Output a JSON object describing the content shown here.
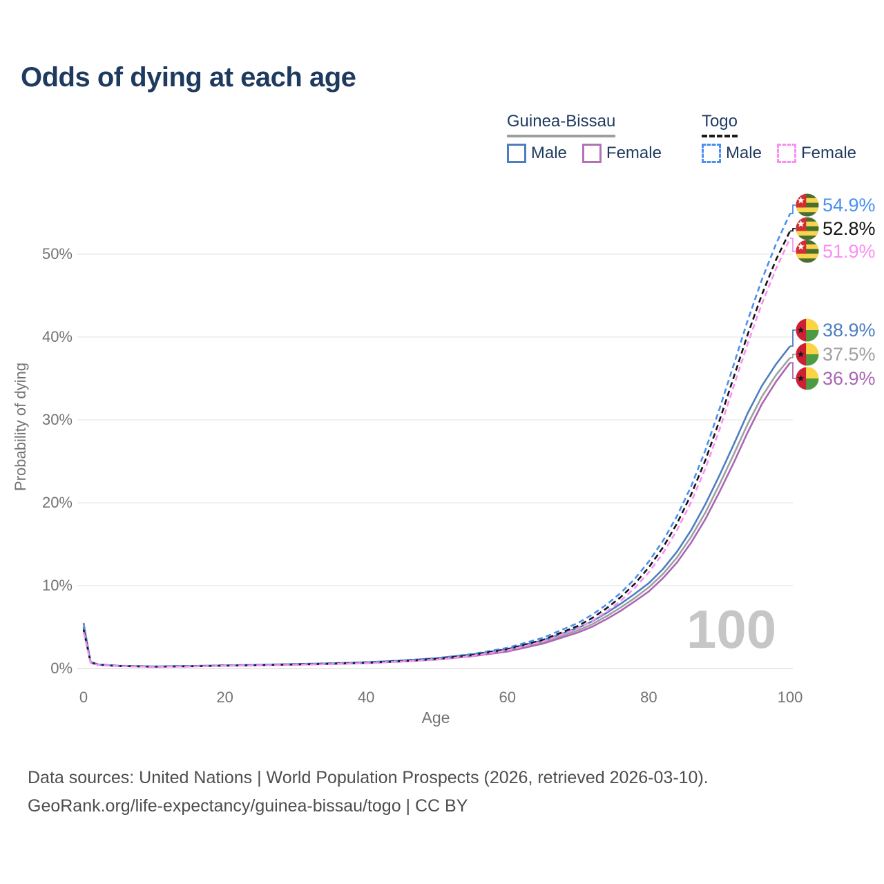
{
  "title": "Odds of dying at each age",
  "watermark_age": "100",
  "legend": {
    "groups": [
      {
        "label": "Guinea-Bissau",
        "line_style": "solid",
        "rule_color": "#9e9e9e",
        "items": [
          {
            "label": "Male",
            "color": "#4d7ec1"
          },
          {
            "label": "Female",
            "color": "#b173b6"
          }
        ]
      },
      {
        "label": "Togo",
        "line_style": "dashed",
        "rule_color": "#1a1a1a",
        "items": [
          {
            "label": "Male",
            "color": "#4a8ff0"
          },
          {
            "label": "Female",
            "color": "#fb8ef2"
          }
        ]
      }
    ]
  },
  "axes": {
    "x": {
      "title": "Age",
      "ticks": [
        {
          "value": 0,
          "label": "0"
        },
        {
          "value": 20,
          "label": "20"
        },
        {
          "value": 40,
          "label": "40"
        },
        {
          "value": 60,
          "label": "60"
        },
        {
          "value": 80,
          "label": "80"
        },
        {
          "value": 100,
          "label": "100"
        }
      ]
    },
    "y": {
      "title": "Probability of dying",
      "ticks": [
        {
          "value": 0,
          "label": "0%"
        },
        {
          "value": 10,
          "label": "10%"
        },
        {
          "value": 20,
          "label": "20%"
        },
        {
          "value": 30,
          "label": "30%"
        },
        {
          "value": 40,
          "label": "40%"
        },
        {
          "value": 50,
          "label": "50%"
        }
      ]
    }
  },
  "footer": {
    "line1": "Data sources: United Nations | World Population Prospects (2026, retrieved 2026-03-10).",
    "line2": "GeoRank.org/life-expectancy/guinea-bissau/togo | CC BY"
  },
  "chart_data": {
    "type": "line",
    "title": "Odds of dying at each age",
    "xlabel": "Age",
    "ylabel": "Probability of dying",
    "xlim": [
      0,
      100
    ],
    "ylim_pct": [
      0,
      56
    ],
    "grid": "horizontal-only",
    "legend_position": "top-right",
    "series": [
      {
        "name": "Guinea-Bissau Male",
        "country": "Guinea-Bissau",
        "sex": "Male",
        "style": "solid",
        "color": "#4d7ec1",
        "flag_icon": "guinea-bissau-flag-icon",
        "end_label": "38.9%",
        "end_value_pct": 38.9,
        "points": [
          [
            0,
            5.5
          ],
          [
            1,
            0.8
          ],
          [
            2,
            0.5
          ],
          [
            5,
            0.33
          ],
          [
            10,
            0.26
          ],
          [
            15,
            0.3
          ],
          [
            20,
            0.38
          ],
          [
            25,
            0.46
          ],
          [
            30,
            0.54
          ],
          [
            35,
            0.63
          ],
          [
            40,
            0.76
          ],
          [
            45,
            0.97
          ],
          [
            50,
            1.25
          ],
          [
            55,
            1.7
          ],
          [
            60,
            2.35
          ],
          [
            65,
            3.4
          ],
          [
            70,
            4.9
          ],
          [
            72,
            5.7
          ],
          [
            74,
            6.7
          ],
          [
            76,
            7.8
          ],
          [
            78,
            9.0
          ],
          [
            80,
            10.3
          ],
          [
            82,
            12.0
          ],
          [
            84,
            14.1
          ],
          [
            86,
            16.7
          ],
          [
            88,
            19.8
          ],
          [
            90,
            23.3
          ],
          [
            92,
            27.0
          ],
          [
            94,
            30.8
          ],
          [
            96,
            34.1
          ],
          [
            98,
            36.7
          ],
          [
            100,
            38.9
          ]
        ]
      },
      {
        "name": "Guinea-Bissau Both sexes",
        "country": "Guinea-Bissau",
        "sex": "Both sexes",
        "style": "solid",
        "color": "#a0a0a0",
        "flag_icon": "guinea-bissau-flag-icon",
        "end_label": "37.5%",
        "end_value_pct": 37.5,
        "points": [
          [
            0,
            5.2
          ],
          [
            1,
            0.75
          ],
          [
            2,
            0.48
          ],
          [
            5,
            0.31
          ],
          [
            10,
            0.24
          ],
          [
            15,
            0.28
          ],
          [
            20,
            0.36
          ],
          [
            25,
            0.43
          ],
          [
            30,
            0.5
          ],
          [
            35,
            0.59
          ],
          [
            40,
            0.71
          ],
          [
            45,
            0.9
          ],
          [
            50,
            1.16
          ],
          [
            55,
            1.58
          ],
          [
            60,
            2.2
          ],
          [
            65,
            3.2
          ],
          [
            70,
            4.6
          ],
          [
            72,
            5.35
          ],
          [
            74,
            6.3
          ],
          [
            76,
            7.35
          ],
          [
            78,
            8.5
          ],
          [
            80,
            9.8
          ],
          [
            82,
            11.4
          ],
          [
            84,
            13.4
          ],
          [
            86,
            15.9
          ],
          [
            88,
            18.8
          ],
          [
            90,
            22.2
          ],
          [
            92,
            25.8
          ],
          [
            94,
            29.5
          ],
          [
            96,
            32.8
          ],
          [
            98,
            35.4
          ],
          [
            100,
            37.5
          ]
        ]
      },
      {
        "name": "Guinea-Bissau Female",
        "country": "Guinea-Bissau",
        "sex": "Female",
        "style": "solid",
        "color": "#aa66b4",
        "flag_icon": "guinea-bissau-flag-icon",
        "end_label": "36.9%",
        "end_value_pct": 36.9,
        "points": [
          [
            0,
            4.9
          ],
          [
            1,
            0.7
          ],
          [
            2,
            0.45
          ],
          [
            5,
            0.29
          ],
          [
            10,
            0.22
          ],
          [
            15,
            0.26
          ],
          [
            20,
            0.33
          ],
          [
            25,
            0.4
          ],
          [
            30,
            0.47
          ],
          [
            35,
            0.55
          ],
          [
            40,
            0.66
          ],
          [
            45,
            0.84
          ],
          [
            50,
            1.08
          ],
          [
            55,
            1.48
          ],
          [
            60,
            2.05
          ],
          [
            65,
            3.0
          ],
          [
            70,
            4.35
          ],
          [
            72,
            5.05
          ],
          [
            74,
            5.95
          ],
          [
            76,
            6.95
          ],
          [
            78,
            8.1
          ],
          [
            80,
            9.3
          ],
          [
            82,
            10.9
          ],
          [
            84,
            12.8
          ],
          [
            86,
            15.2
          ],
          [
            88,
            18.0
          ],
          [
            90,
            21.3
          ],
          [
            92,
            24.8
          ],
          [
            94,
            28.5
          ],
          [
            96,
            31.9
          ],
          [
            98,
            34.6
          ],
          [
            100,
            36.9
          ]
        ]
      },
      {
        "name": "Togo Male",
        "country": "Togo",
        "sex": "Male",
        "style": "dashed",
        "color": "#4a8ff0",
        "flag_icon": "togo-flag-icon",
        "end_label": "54.9%",
        "end_value_pct": 54.9,
        "points": [
          [
            0,
            5.0
          ],
          [
            1,
            0.8
          ],
          [
            2,
            0.5
          ],
          [
            5,
            0.32
          ],
          [
            10,
            0.24
          ],
          [
            15,
            0.29
          ],
          [
            20,
            0.37
          ],
          [
            25,
            0.45
          ],
          [
            30,
            0.53
          ],
          [
            35,
            0.62
          ],
          [
            40,
            0.75
          ],
          [
            45,
            0.96
          ],
          [
            50,
            1.25
          ],
          [
            55,
            1.75
          ],
          [
            60,
            2.5
          ],
          [
            65,
            3.7
          ],
          [
            70,
            5.5
          ],
          [
            72,
            6.5
          ],
          [
            74,
            7.7
          ],
          [
            76,
            9.1
          ],
          [
            78,
            10.8
          ],
          [
            80,
            12.9
          ],
          [
            82,
            15.4
          ],
          [
            84,
            18.4
          ],
          [
            86,
            22.0
          ],
          [
            88,
            26.3
          ],
          [
            90,
            31.3
          ],
          [
            92,
            36.6
          ],
          [
            94,
            42.0
          ],
          [
            96,
            46.9
          ],
          [
            98,
            51.2
          ],
          [
            100,
            54.9
          ]
        ]
      },
      {
        "name": "Togo Both sexes",
        "country": "Togo",
        "sex": "Both sexes",
        "style": "dashed",
        "color": "#151515",
        "flag_icon": "togo-flag-icon",
        "end_label": "52.8%",
        "end_value_pct": 52.8,
        "points": [
          [
            0,
            4.7
          ],
          [
            1,
            0.75
          ],
          [
            2,
            0.48
          ],
          [
            5,
            0.3
          ],
          [
            10,
            0.22
          ],
          [
            15,
            0.27
          ],
          [
            20,
            0.35
          ],
          [
            25,
            0.42
          ],
          [
            30,
            0.5
          ],
          [
            35,
            0.58
          ],
          [
            40,
            0.7
          ],
          [
            45,
            0.9
          ],
          [
            50,
            1.17
          ],
          [
            55,
            1.63
          ],
          [
            60,
            2.33
          ],
          [
            65,
            3.45
          ],
          [
            70,
            5.15
          ],
          [
            72,
            6.1
          ],
          [
            74,
            7.25
          ],
          [
            76,
            8.6
          ],
          [
            78,
            10.2
          ],
          [
            80,
            12.2
          ],
          [
            82,
            14.6
          ],
          [
            84,
            17.5
          ],
          [
            86,
            21.0
          ],
          [
            88,
            25.1
          ],
          [
            90,
            29.9
          ],
          [
            92,
            35.1
          ],
          [
            94,
            40.3
          ],
          [
            96,
            45.1
          ],
          [
            98,
            49.3
          ],
          [
            100,
            52.8
          ]
        ]
      },
      {
        "name": "Togo Female",
        "country": "Togo",
        "sex": "Female",
        "style": "dashed",
        "color": "#fb8ef2",
        "flag_icon": "togo-flag-icon",
        "end_label": "51.9%",
        "end_value_pct": 51.9,
        "points": [
          [
            0,
            4.4
          ],
          [
            1,
            0.7
          ],
          [
            2,
            0.45
          ],
          [
            5,
            0.28
          ],
          [
            10,
            0.21
          ],
          [
            15,
            0.25
          ],
          [
            20,
            0.32
          ],
          [
            25,
            0.39
          ],
          [
            30,
            0.46
          ],
          [
            35,
            0.54
          ],
          [
            40,
            0.65
          ],
          [
            45,
            0.84
          ],
          [
            50,
            1.09
          ],
          [
            55,
            1.52
          ],
          [
            60,
            2.18
          ],
          [
            65,
            3.25
          ],
          [
            70,
            4.85
          ],
          [
            72,
            5.75
          ],
          [
            74,
            6.85
          ],
          [
            76,
            8.15
          ],
          [
            78,
            9.7
          ],
          [
            80,
            11.6
          ],
          [
            82,
            13.9
          ],
          [
            84,
            16.7
          ],
          [
            86,
            20.1
          ],
          [
            88,
            24.1
          ],
          [
            90,
            28.8
          ],
          [
            92,
            34.0
          ],
          [
            94,
            39.2
          ],
          [
            96,
            44.0
          ],
          [
            98,
            48.2
          ],
          [
            100,
            51.9
          ]
        ]
      }
    ]
  }
}
